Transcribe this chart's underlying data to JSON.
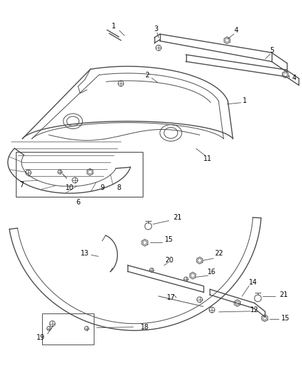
{
  "bg_color": "#ffffff",
  "line_color": "#4a4a4a",
  "label_color": "#000000",
  "fig_width": 4.38,
  "fig_height": 5.33,
  "dpi": 100
}
